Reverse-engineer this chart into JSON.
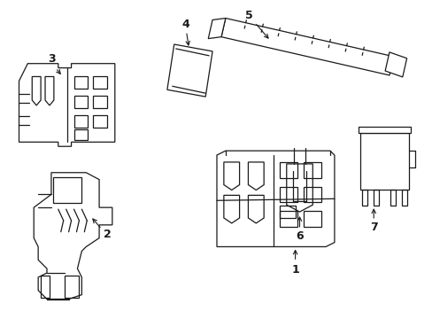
{
  "background_color": "#ffffff",
  "line_color": "#1a1a1a",
  "figsize": [
    4.89,
    3.6
  ],
  "dpi": 100,
  "border_color": "#cccccc",
  "border_lw": 0.5
}
